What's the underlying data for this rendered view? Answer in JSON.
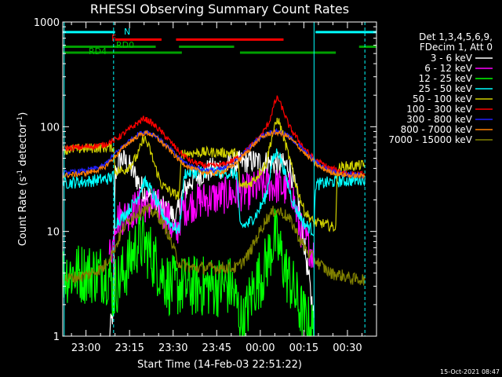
{
  "chart_data": {
    "type": "line",
    "title": "RHESSI Observing Summary Count Rates",
    "xlabel": "Start Time (14-Feb-03 22:51:22)",
    "ylabel_parts": [
      "Count Rate (s",
      "-1",
      " detector",
      "-1",
      ")"
    ],
    "yscale": "log",
    "ylim": [
      1,
      1000
    ],
    "xlim_minutes": [
      -8,
      100
    ],
    "x_ticks": [
      {
        "m": 0,
        "label": "23:00"
      },
      {
        "m": 15,
        "label": "23:15"
      },
      {
        "m": 30,
        "label": "23:30"
      },
      {
        "m": 45,
        "label": "23:45"
      },
      {
        "m": 60,
        "label": "00:00"
      },
      {
        "m": 75,
        "label": "00:15"
      },
      {
        "m": 90,
        "label": "00:30"
      }
    ],
    "y_ticks": [
      {
        "v": 1,
        "label": "1"
      },
      {
        "v": 10,
        "label": "10"
      },
      {
        "v": 100,
        "label": "100"
      },
      {
        "v": 1000,
        "label": "1000"
      }
    ],
    "legend_header": [
      "Det 1,3,4,5,6,9,",
      "FDecim 1, Att 0"
    ],
    "legend_position": "right",
    "timestamp": "15-Oct-2021 08:47",
    "flag_labels": {
      "N": "N",
      "F": "F",
      "RD0": "RD0",
      "RD4": "RD4"
    },
    "flags": [
      {
        "name": "N",
        "color": "#00ffff",
        "level": 800,
        "segments": [
          [
            -8,
            10
          ],
          [
            79,
            100
          ]
        ]
      },
      {
        "name": "F",
        "color": "#ff0000",
        "level": 680,
        "segments": [
          [
            10,
            26
          ],
          [
            31,
            68
          ]
        ]
      },
      {
        "name": "RD0",
        "color": "#00a000",
        "level": 580,
        "segments": [
          [
            -8,
            24
          ],
          [
            32,
            51
          ],
          [
            94,
            100
          ]
        ]
      },
      {
        "name": "RD4",
        "color": "#00a000",
        "level": 510,
        "segments": [
          [
            -8,
            33
          ],
          [
            53,
            86
          ]
        ]
      }
    ],
    "vlines": [
      {
        "m": -7.5,
        "style": "solid",
        "color": "#00ffff"
      },
      {
        "m": 9.5,
        "style": "dashed",
        "color": "#00ffff"
      },
      {
        "m": 78.5,
        "style": "solid",
        "color": "#00ffff"
      },
      {
        "m": 96,
        "style": "dashed",
        "color": "#00ffff"
      }
    ],
    "series": [
      {
        "name": "3 - 6 keV",
        "color": "#ffffff",
        "noise": 0.12,
        "points": [
          [
            8,
            1.0
          ],
          [
            9.5,
            1.8
          ],
          [
            10,
            35
          ],
          [
            12,
            50
          ],
          [
            14,
            45
          ],
          [
            16,
            38
          ],
          [
            18,
            30
          ],
          [
            20,
            24
          ],
          [
            23,
            20
          ],
          [
            26,
            17
          ],
          [
            29,
            15
          ],
          [
            31,
            13
          ],
          [
            33,
            22
          ],
          [
            36,
            30
          ],
          [
            39,
            35
          ],
          [
            42,
            38
          ],
          [
            45,
            40
          ],
          [
            48,
            42
          ],
          [
            51,
            44
          ],
          [
            54,
            46
          ],
          [
            57,
            47
          ],
          [
            60,
            46
          ],
          [
            63,
            45
          ],
          [
            66,
            44
          ],
          [
            68,
            43
          ],
          [
            70,
            42
          ],
          [
            73,
            20
          ],
          [
            75,
            8
          ],
          [
            77,
            3
          ],
          [
            78.5,
            1.5
          ]
        ]
      },
      {
        "name": "6 - 12 keV",
        "color": "#ff00ff",
        "noise": 0.18,
        "points": [
          [
            8,
            6
          ],
          [
            9.5,
            8
          ],
          [
            10,
            13
          ],
          [
            13,
            14
          ],
          [
            16,
            16
          ],
          [
            19,
            18
          ],
          [
            22,
            18
          ],
          [
            25,
            17
          ],
          [
            28,
            14
          ],
          [
            30,
            10
          ],
          [
            31,
            9
          ],
          [
            33,
            16
          ],
          [
            36,
            18
          ],
          [
            40,
            20
          ],
          [
            44,
            21
          ],
          [
            48,
            22
          ],
          [
            52,
            23
          ],
          [
            56,
            24
          ],
          [
            60,
            27
          ],
          [
            63,
            28
          ],
          [
            66,
            27
          ],
          [
            69,
            25
          ],
          [
            71,
            24
          ],
          [
            73,
            12
          ],
          [
            75,
            9
          ],
          [
            77,
            7
          ],
          [
            78.5,
            6
          ]
        ]
      },
      {
        "name": "12 - 25 keV",
        "color": "#00ff00",
        "noise": 0.3,
        "points": [
          [
            -8,
            4
          ],
          [
            8,
            4
          ],
          [
            9.5,
            2.5
          ],
          [
            10,
            3
          ],
          [
            13,
            4
          ],
          [
            16,
            6
          ],
          [
            18,
            8
          ],
          [
            21,
            7
          ],
          [
            24,
            5
          ],
          [
            26,
            4
          ],
          [
            29,
            3
          ],
          [
            31,
            3
          ],
          [
            33,
            3
          ],
          [
            40,
            3
          ],
          [
            45,
            3
          ],
          [
            50,
            3
          ],
          [
            52,
            2
          ],
          [
            54,
            1.2
          ],
          [
            56,
            2
          ],
          [
            58,
            3
          ],
          [
            61,
            4
          ],
          [
            63,
            6
          ],
          [
            65,
            9
          ],
          [
            67,
            6
          ],
          [
            69,
            4
          ],
          [
            71,
            3
          ],
          [
            73,
            2
          ],
          [
            75,
            1.5
          ],
          [
            77,
            1.2
          ],
          [
            78.5,
            1.1
          ]
        ]
      },
      {
        "name": "25 - 50 keV",
        "color": "#00ffff",
        "noise": 0.06,
        "points": [
          [
            -8,
            29
          ],
          [
            0,
            30
          ],
          [
            8,
            32
          ],
          [
            9.5,
            34
          ],
          [
            10,
            12
          ],
          [
            13,
            14
          ],
          [
            16,
            18
          ],
          [
            18,
            22
          ],
          [
            20,
            30
          ],
          [
            22,
            26
          ],
          [
            24,
            20
          ],
          [
            26,
            15
          ],
          [
            29,
            12
          ],
          [
            32,
            10
          ],
          [
            34,
            36
          ],
          [
            40,
            37
          ],
          [
            45,
            37
          ],
          [
            50,
            36
          ],
          [
            52,
            35
          ],
          [
            53,
            11
          ],
          [
            56,
            12
          ],
          [
            59,
            15
          ],
          [
            62,
            22
          ],
          [
            64,
            45
          ],
          [
            66,
            60
          ],
          [
            68,
            40
          ],
          [
            70,
            25
          ],
          [
            72,
            17
          ],
          [
            75,
            12
          ],
          [
            78.5,
            10
          ],
          [
            79,
            28
          ],
          [
            86,
            30
          ],
          [
            93,
            31
          ],
          [
            96,
            32
          ]
        ]
      },
      {
        "name": "50 - 100 keV",
        "color": "#d0d000",
        "noise": 0.05,
        "points": [
          [
            -8,
            60
          ],
          [
            0,
            62
          ],
          [
            9.5,
            64
          ],
          [
            10,
            38
          ],
          [
            13,
            38
          ],
          [
            16,
            45
          ],
          [
            18,
            55
          ],
          [
            20,
            80
          ],
          [
            22,
            60
          ],
          [
            24,
            40
          ],
          [
            26,
            28
          ],
          [
            30,
            23
          ],
          [
            32,
            22
          ],
          [
            33,
            55
          ],
          [
            40,
            57
          ],
          [
            45,
            57
          ],
          [
            50,
            56
          ],
          [
            52,
            56
          ],
          [
            53,
            27
          ],
          [
            56,
            28
          ],
          [
            59,
            34
          ],
          [
            62,
            45
          ],
          [
            64,
            80
          ],
          [
            66,
            120
          ],
          [
            68,
            80
          ],
          [
            70,
            50
          ],
          [
            72,
            30
          ],
          [
            75,
            16
          ],
          [
            78.5,
            12
          ],
          [
            81,
            12
          ],
          [
            85,
            11
          ],
          [
            86,
            11
          ],
          [
            86.5,
            40
          ],
          [
            90,
            42
          ],
          [
            96,
            43
          ]
        ]
      },
      {
        "name": "100 - 300 keV",
        "color": "#ff0000",
        "noise": 0.03,
        "points": [
          [
            -8,
            62
          ],
          [
            0,
            64
          ],
          [
            6,
            67
          ],
          [
            10,
            75
          ],
          [
            14,
            90
          ],
          [
            18,
            110
          ],
          [
            20,
            120
          ],
          [
            22,
            112
          ],
          [
            25,
            95
          ],
          [
            29,
            72
          ],
          [
            32,
            58
          ],
          [
            36,
            47
          ],
          [
            40,
            43
          ],
          [
            44,
            42
          ],
          [
            48,
            44
          ],
          [
            52,
            50
          ],
          [
            56,
            62
          ],
          [
            60,
            80
          ],
          [
            63,
            110
          ],
          [
            65,
            170
          ],
          [
            66,
            190
          ],
          [
            68,
            140
          ],
          [
            70,
            100
          ],
          [
            73,
            75
          ],
          [
            76,
            58
          ],
          [
            79,
            48
          ],
          [
            84,
            40
          ],
          [
            88,
            37
          ],
          [
            90,
            36
          ],
          [
            92,
            35
          ],
          [
            96,
            35
          ]
        ]
      },
      {
        "name": "300 - 800 keV",
        "color": "#2020ff",
        "noise": 0.025,
        "points": [
          [
            -8,
            36
          ],
          [
            0,
            38
          ],
          [
            6,
            42
          ],
          [
            10,
            55
          ],
          [
            14,
            70
          ],
          [
            18,
            85
          ],
          [
            21,
            90
          ],
          [
            24,
            82
          ],
          [
            28,
            65
          ],
          [
            32,
            50
          ],
          [
            36,
            42
          ],
          [
            40,
            39
          ],
          [
            44,
            38
          ],
          [
            48,
            40
          ],
          [
            52,
            48
          ],
          [
            56,
            62
          ],
          [
            60,
            80
          ],
          [
            63,
            88
          ],
          [
            66,
            90
          ],
          [
            69,
            84
          ],
          [
            72,
            72
          ],
          [
            76,
            55
          ],
          [
            80,
            44
          ],
          [
            84,
            38
          ],
          [
            88,
            36
          ],
          [
            92,
            35
          ],
          [
            96,
            34
          ]
        ]
      },
      {
        "name": "800 - 7000 keV",
        "color": "#ff8000",
        "noise": 0.025,
        "points": [
          [
            -8,
            34
          ],
          [
            0,
            36
          ],
          [
            6,
            40
          ],
          [
            10,
            52
          ],
          [
            14,
            68
          ],
          [
            18,
            82
          ],
          [
            21,
            88
          ],
          [
            24,
            80
          ],
          [
            28,
            63
          ],
          [
            32,
            48
          ],
          [
            36,
            40
          ],
          [
            40,
            37
          ],
          [
            44,
            36
          ],
          [
            48,
            38
          ],
          [
            52,
            46
          ],
          [
            56,
            60
          ],
          [
            60,
            78
          ],
          [
            63,
            86
          ],
          [
            66,
            88
          ],
          [
            69,
            82
          ],
          [
            72,
            70
          ],
          [
            76,
            53
          ],
          [
            80,
            42
          ],
          [
            84,
            37
          ],
          [
            88,
            35
          ],
          [
            92,
            34
          ],
          [
            96,
            34
          ]
        ]
      },
      {
        "name": "7000 - 15000 keV",
        "color": "#808000",
        "noise": 0.06,
        "points": [
          [
            -8,
            3.5
          ],
          [
            0,
            3.8
          ],
          [
            6,
            4.5
          ],
          [
            10,
            7
          ],
          [
            13,
            11
          ],
          [
            16,
            14
          ],
          [
            19,
            16
          ],
          [
            22,
            16
          ],
          [
            25,
            14
          ],
          [
            28,
            10
          ],
          [
            30,
            7
          ],
          [
            32,
            5
          ],
          [
            36,
            4.5
          ],
          [
            40,
            4.5
          ],
          [
            44,
            4.5
          ],
          [
            48,
            4.5
          ],
          [
            52,
            4.5
          ],
          [
            56,
            6
          ],
          [
            59,
            9
          ],
          [
            62,
            13
          ],
          [
            65,
            16
          ],
          [
            68,
            15
          ],
          [
            71,
            12
          ],
          [
            74,
            8
          ],
          [
            77,
            6
          ],
          [
            80,
            5
          ],
          [
            84,
            4
          ],
          [
            88,
            3.8
          ],
          [
            92,
            3.5
          ],
          [
            96,
            3.5
          ]
        ]
      }
    ]
  }
}
